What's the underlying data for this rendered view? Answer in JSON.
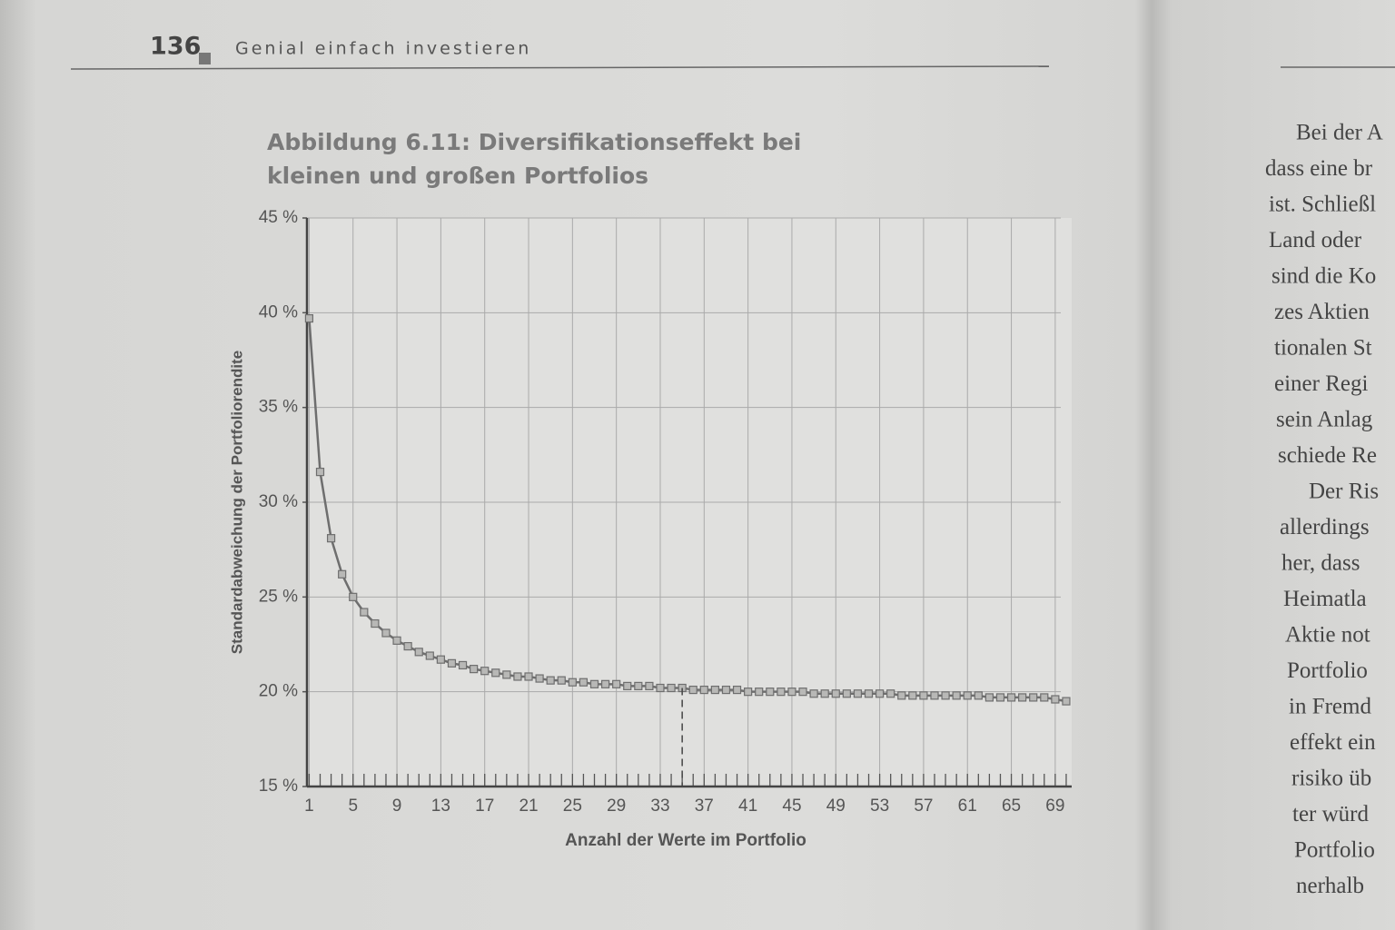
{
  "page": {
    "number": "136",
    "running_head": "Genial einfach investieren"
  },
  "chart_data": {
    "type": "line",
    "title": "Abbildung 6.11: Diversifikationseffekt bei kleinen und großen Portfolios",
    "x_label": "Anzahl der Werte im Portfolio",
    "y_label": "Standardabweichung der Portfoliorendite",
    "x": [
      1,
      2,
      3,
      4,
      5,
      6,
      7,
      8,
      9,
      10,
      11,
      12,
      13,
      14,
      15,
      16,
      17,
      18,
      19,
      20,
      21,
      22,
      23,
      24,
      25,
      26,
      27,
      28,
      29,
      30,
      31,
      32,
      33,
      34,
      35,
      36,
      37,
      38,
      39,
      40,
      41,
      42,
      43,
      44,
      45,
      46,
      47,
      48,
      49,
      50,
      51,
      52,
      53,
      54,
      55,
      56,
      57,
      58,
      59,
      60,
      61,
      62,
      63,
      64,
      65,
      66,
      67,
      68,
      69,
      70
    ],
    "series": [
      {
        "name": "Standardabweichung",
        "color": "#6e6e6e",
        "values": [
          39.7,
          31.6,
          28.1,
          26.2,
          25.0,
          24.2,
          23.6,
          23.1,
          22.7,
          22.4,
          22.1,
          21.9,
          21.7,
          21.5,
          21.4,
          21.2,
          21.1,
          21.0,
          20.9,
          20.8,
          20.8,
          20.7,
          20.6,
          20.6,
          20.5,
          20.5,
          20.4,
          20.4,
          20.4,
          20.3,
          20.3,
          20.3,
          20.2,
          20.2,
          20.2,
          20.1,
          20.1,
          20.1,
          20.1,
          20.1,
          20.0,
          20.0,
          20.0,
          20.0,
          20.0,
          20.0,
          19.9,
          19.9,
          19.9,
          19.9,
          19.9,
          19.9,
          19.9,
          19.9,
          19.8,
          19.8,
          19.8,
          19.8,
          19.8,
          19.8,
          19.8,
          19.8,
          19.7,
          19.7,
          19.7,
          19.7,
          19.7,
          19.7,
          19.6,
          19.5
        ]
      }
    ],
    "marker_x": 35,
    "xlim": [
      0.8,
      70.5
    ],
    "xticks": [
      1,
      5,
      9,
      13,
      17,
      21,
      25,
      29,
      33,
      37,
      41,
      45,
      49,
      53,
      57,
      61,
      65,
      69
    ],
    "ylim": [
      15,
      45
    ],
    "yticks": [
      {
        "value": 15,
        "label": "15 %"
      },
      {
        "value": 20,
        "label": "20 %"
      },
      {
        "value": 25,
        "label": "25 %"
      },
      {
        "value": 30,
        "label": "30 %"
      },
      {
        "value": 35,
        "label": "35 %"
      },
      {
        "value": 40,
        "label": "40 %"
      },
      {
        "value": 45,
        "label": "45 %"
      }
    ],
    "grid": true
  },
  "facing_page": {
    "lines": [
      "Bei der A",
      "dass eine br",
      "ist. Schließl",
      "Land oder",
      "sind die Ko",
      "zes Aktien",
      "tionalen St",
      "einer Regi",
      "sein Anlag",
      "schiede Re",
      "Der Ris",
      "allerdings",
      "her, dass",
      "Heimatla",
      "Aktie not",
      "Portfolio",
      "in Fremd",
      "effekt ein",
      "risiko üb",
      "ter würd",
      "Portfolio",
      "nerhalb"
    ]
  }
}
